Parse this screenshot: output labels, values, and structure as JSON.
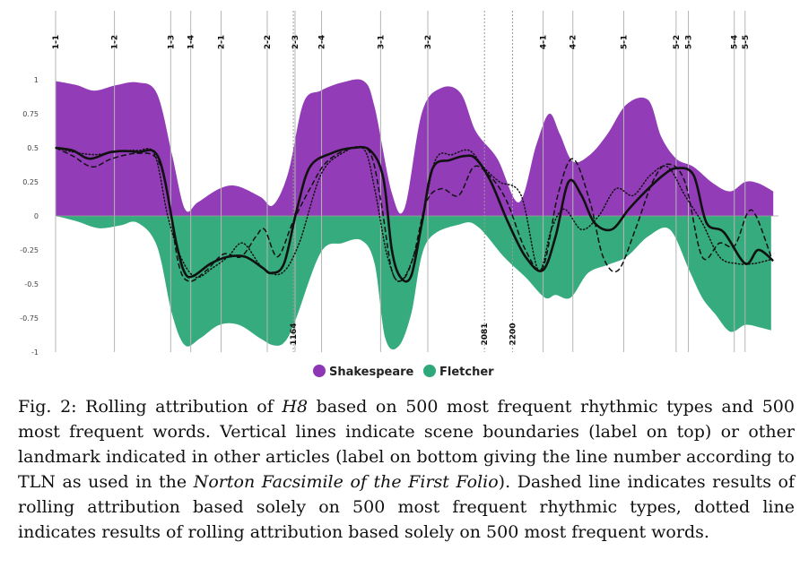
{
  "chart_data": {
    "type": "area",
    "x_range": [
      0,
      3354
    ],
    "ylim": [
      -1,
      1
    ],
    "y_ticks": [
      "1",
      "0.75",
      "0.5",
      "0.25",
      "0",
      "-0.25",
      "-0.5",
      "-0.75",
      "-1"
    ],
    "y_tick_values": [
      1,
      0.75,
      0.5,
      0.25,
      0,
      -0.25,
      -0.5,
      -0.75,
      -1
    ],
    "scene_boundaries": [
      {
        "label": "1-1",
        "x": 0
      },
      {
        "label": "1-2",
        "x": 273
      },
      {
        "label": "1-3",
        "x": 534
      },
      {
        "label": "1-4",
        "x": 627
      },
      {
        "label": "2-1",
        "x": 768
      },
      {
        "label": "2-2",
        "x": 982
      },
      {
        "label": "2-3",
        "x": 1111
      },
      {
        "label": "2-4",
        "x": 1234
      },
      {
        "label": "3-1",
        "x": 1508
      },
      {
        "label": "3-2",
        "x": 1727
      },
      {
        "label": "4-1",
        "x": 2262
      },
      {
        "label": "4-2",
        "x": 2400
      },
      {
        "label": "5-1",
        "x": 2636
      },
      {
        "label": "5-2",
        "x": 2879
      },
      {
        "label": "5-3",
        "x": 2936
      },
      {
        "label": "5-4",
        "x": 3149
      },
      {
        "label": "5-5",
        "x": 3199
      }
    ],
    "landmarks": [
      {
        "label": "1164",
        "x": 1103
      },
      {
        "label": "2081",
        "x": 1990
      },
      {
        "label": "2200",
        "x": 2120
      }
    ],
    "legend": {
      "position": "bottom-center"
    },
    "series": [
      {
        "name": "Shakespeare",
        "kind": "area",
        "color": "#8e36b5",
        "x": [
          0,
          100,
          180,
          280,
          380,
          470,
          540,
          600,
          660,
          760,
          840,
          950,
          1010,
          1080,
          1150,
          1230,
          1330,
          1430,
          1480,
          1560,
          1620,
          1700,
          1790,
          1880,
          1950,
          2050,
          2150,
          2230,
          2290,
          2340,
          2400,
          2480,
          2560,
          2650,
          2750,
          2810,
          2880,
          2960,
          3050,
          3130,
          3200,
          3260,
          3330
        ],
        "values": [
          0.99,
          0.96,
          0.92,
          0.96,
          0.98,
          0.9,
          0.45,
          0.05,
          0.1,
          0.2,
          0.22,
          0.14,
          0.08,
          0.32,
          0.83,
          0.92,
          0.98,
          0.99,
          0.8,
          0.17,
          0.06,
          0.76,
          0.94,
          0.9,
          0.62,
          0.42,
          0.1,
          0.52,
          0.75,
          0.6,
          0.4,
          0.45,
          0.6,
          0.82,
          0.85,
          0.58,
          0.42,
          0.36,
          0.24,
          0.18,
          0.25,
          0.24,
          0.18
        ]
      },
      {
        "name": "Fletcher",
        "kind": "area",
        "color": "#2ea87a",
        "x": [
          0,
          100,
          200,
          300,
          380,
          470,
          540,
          600,
          670,
          760,
          850,
          950,
          1010,
          1060,
          1110,
          1230,
          1330,
          1420,
          1480,
          1530,
          1590,
          1650,
          1720,
          1880,
          1960,
          2080,
          2180,
          2270,
          2320,
          2390,
          2470,
          2560,
          2650,
          2750,
          2850,
          2940,
          3000,
          3060,
          3130,
          3200,
          3270,
          3320
        ],
        "values": [
          0,
          -0.04,
          -0.09,
          -0.07,
          -0.05,
          -0.22,
          -0.72,
          -0.95,
          -0.9,
          -0.8,
          -0.8,
          -0.9,
          -0.95,
          -0.93,
          -0.78,
          -0.27,
          -0.2,
          -0.18,
          -0.35,
          -0.9,
          -0.96,
          -0.72,
          -0.2,
          -0.06,
          -0.08,
          -0.3,
          -0.45,
          -0.6,
          -0.58,
          -0.6,
          -0.42,
          -0.36,
          -0.3,
          -0.15,
          -0.1,
          -0.4,
          -0.6,
          -0.72,
          -0.85,
          -0.8,
          -0.82,
          -0.84
        ]
      },
      {
        "kind": "line-solid",
        "color": "#111111",
        "x": [
          0,
          80,
          160,
          260,
          380,
          480,
          560,
          600,
          640,
          720,
          800,
          880,
          960,
          1000,
          1060,
          1120,
          1180,
          1280,
          1380,
          1460,
          1520,
          1560,
          1600,
          1650,
          1700,
          1750,
          1830,
          1900,
          1950,
          2020,
          2100,
          2180,
          2260,
          2320,
          2380,
          2440,
          2500,
          2580,
          2660,
          2750,
          2820,
          2880,
          2960,
          3020,
          3100,
          3200,
          3260,
          3330
        ],
        "values": [
          0.5,
          0.48,
          0.42,
          0.47,
          0.47,
          0.42,
          -0.2,
          -0.42,
          -0.44,
          -0.35,
          -0.3,
          -0.3,
          -0.38,
          -0.42,
          -0.35,
          0.05,
          0.36,
          0.46,
          0.5,
          0.48,
          0.28,
          -0.25,
          -0.45,
          -0.44,
          -0.05,
          0.35,
          0.41,
          0.44,
          0.42,
          0.25,
          -0.05,
          -0.3,
          -0.4,
          -0.15,
          0.25,
          0.15,
          -0.05,
          -0.1,
          0.05,
          0.2,
          0.3,
          0.35,
          0.3,
          -0.05,
          -0.12,
          -0.35,
          -0.25,
          -0.33
        ]
      },
      {
        "kind": "line-dashed",
        "color": "#111111",
        "x": [
          0,
          80,
          170,
          260,
          380,
          470,
          520,
          570,
          620,
          700,
          780,
          860,
          930,
          970,
          1030,
          1100,
          1180,
          1260,
          1380,
          1460,
          1510,
          1560,
          1610,
          1660,
          1720,
          1790,
          1870,
          1940,
          2010,
          2090,
          2180,
          2260,
          2330,
          2400,
          2480,
          2540,
          2610,
          2690,
          2770,
          2840,
          2920,
          3000,
          3080,
          3150,
          3210,
          3250,
          3320
        ],
        "values": [
          0.5,
          0.44,
          0.36,
          0.42,
          0.46,
          0.42,
          0.15,
          -0.35,
          -0.48,
          -0.4,
          -0.28,
          -0.3,
          -0.15,
          -0.1,
          -0.3,
          -0.05,
          0.2,
          0.4,
          0.5,
          0.46,
          0.1,
          -0.4,
          -0.47,
          -0.3,
          0.1,
          0.2,
          0.15,
          0.36,
          0.3,
          0.12,
          -0.25,
          -0.38,
          0.15,
          0.42,
          0.1,
          -0.3,
          -0.4,
          -0.1,
          0.25,
          0.38,
          0.25,
          -0.3,
          -0.2,
          -0.22,
          0.02,
          0.0,
          -0.3
        ]
      },
      {
        "kind": "line-dotted",
        "color": "#111111",
        "x": [
          0,
          80,
          180,
          280,
          380,
          460,
          520,
          580,
          650,
          730,
          800,
          870,
          960,
          1050,
          1130,
          1230,
          1330,
          1430,
          1480,
          1540,
          1600,
          1680,
          1760,
          1840,
          1920,
          1990,
          2060,
          2160,
          2240,
          2300,
          2360,
          2440,
          2520,
          2600,
          2680,
          2760,
          2840,
          2920,
          3000,
          3080,
          3160,
          3240,
          3320
        ],
        "values": [
          0.5,
          0.47,
          0.45,
          0.47,
          0.48,
          0.45,
          0.0,
          -0.3,
          -0.45,
          -0.38,
          -0.3,
          -0.2,
          -0.38,
          -0.42,
          -0.2,
          0.3,
          0.46,
          0.49,
          0.2,
          -0.3,
          -0.48,
          -0.2,
          0.4,
          0.45,
          0.48,
          0.35,
          0.25,
          0.15,
          -0.4,
          -0.1,
          0.05,
          -0.1,
          0.0,
          0.2,
          0.15,
          0.3,
          0.36,
          0.15,
          -0.05,
          -0.3,
          -0.35,
          -0.35,
          -0.32
        ]
      }
    ]
  },
  "caption": {
    "t1": "Fig. 2: Rolling attribution of ",
    "t2": "H8",
    "t3": " based on 500 most frequent rhythmic types and 500 most frequent words. Vertical lines indicate scene boundaries (label on top) or other landmark indicated in other articles (label on bottom giving the line number according to TLN as used in the ",
    "t4": "Norton Facsimile of the First Folio",
    "t5": "). Dashed line indicates results of rolling attribution based solely on 500 most frequent rhythmic types, dotted line indicates results of rolling attribution based solely on 500 most frequent words."
  }
}
